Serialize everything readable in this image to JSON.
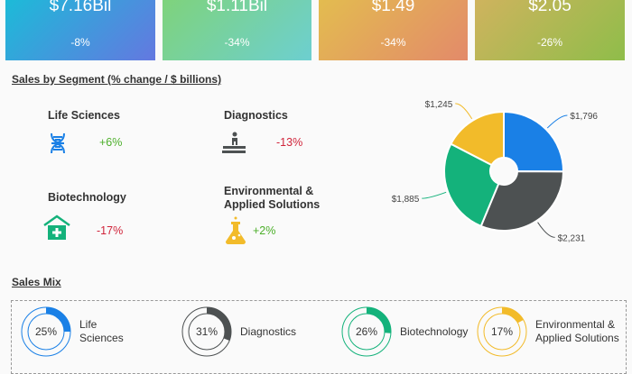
{
  "kpis": [
    {
      "value": "$7.16Bil",
      "change": "-8%",
      "from": "#1bbcd8",
      "to": "#6478e0"
    },
    {
      "value": "$1.11Bil",
      "change": "-34%",
      "from": "#7fd37a",
      "to": "#6dcfd0"
    },
    {
      "value": "$1.49",
      "change": "-34%",
      "from": "#e3bd4f",
      "to": "#e38a6a"
    },
    {
      "value": "$2.05",
      "change": "-26%",
      "from": "#d0b35e",
      "to": "#8fbd4a"
    }
  ],
  "segment_title": "Sales by Segment (% change / $ billions)",
  "segments": [
    {
      "name": "Life Sciences",
      "change": "+6%",
      "icon": "dna-icon",
      "color": "#1a80e6",
      "change_color": "#4caf2a"
    },
    {
      "name": "Diagnostics",
      "change": "-13%",
      "icon": "patient-exam-icon",
      "color": "#4d5152",
      "change_color": "#d0243a"
    },
    {
      "name": "Biotechnology",
      "change": "-17%",
      "icon": "hospital-icon",
      "color": "#14b27b",
      "change_color": "#d0243a"
    },
    {
      "name": "Environmental & Applied Solutions",
      "change": "+2%",
      "icon": "flask-icon",
      "color": "#f2bb2a",
      "change_color": "#4caf2a"
    }
  ],
  "chart_data": {
    "type": "pie",
    "donut": true,
    "categories": [
      "Life Sciences",
      "Diagnostics",
      "Biotechnology",
      "Environmental & Applied Solutions"
    ],
    "values": [
      1796,
      2231,
      1885,
      1245
    ],
    "labels": [
      "$1,796",
      "$2,231",
      "$1,885",
      "$1,245"
    ],
    "colors": [
      "#1a80e6",
      "#4d5152",
      "#14b27b",
      "#f2bb2a"
    ]
  },
  "mix_title": "Sales Mix",
  "mix": [
    {
      "pct": "25%",
      "value": 25,
      "label1": "Life",
      "label2": "Sciences",
      "color": "#1a80e6"
    },
    {
      "pct": "31%",
      "value": 31,
      "label1": "Diagnostics",
      "label2": "",
      "color": "#4d5152"
    },
    {
      "pct": "26%",
      "value": 26,
      "label1": "Biotechnology",
      "label2": "",
      "color": "#14b27b"
    },
    {
      "pct": "17%",
      "value": 17,
      "label1": "Environmental &",
      "label2": "Applied Solutions",
      "color": "#f2bb2a"
    }
  ]
}
